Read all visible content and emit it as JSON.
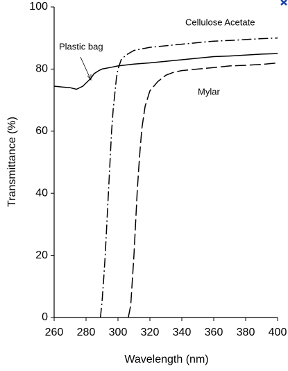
{
  "chart_data": {
    "type": "line",
    "xlabel": "Wavelength (nm)",
    "ylabel": "Transmittance (%)",
    "xlim": [
      260,
      400
    ],
    "ylim": [
      0,
      100
    ],
    "xticks": [
      260,
      280,
      300,
      320,
      340,
      360,
      380,
      400
    ],
    "yticks": [
      0,
      20,
      40,
      60,
      80,
      100
    ],
    "series": [
      {
        "name": "Plastic bag",
        "color": "#000000",
        "dash": "solid",
        "x": [
          260,
          265,
          270,
          274,
          278,
          280,
          283,
          285,
          288,
          290,
          295,
          300,
          310,
          320,
          330,
          340,
          350,
          360,
          370,
          380,
          390,
          400
        ],
        "values": [
          74.5,
          74.2,
          74,
          73.5,
          74.5,
          75.5,
          77,
          78.5,
          79.5,
          80,
          80.5,
          81,
          81.6,
          82,
          82.5,
          83,
          83.5,
          84,
          84.2,
          84.5,
          84.8,
          85
        ]
      },
      {
        "name": "Cellulose Acetate",
        "color": "#000000",
        "dash": "dashdot",
        "x": [
          289,
          290,
          291,
          292,
          293,
          294,
          295,
          296,
          297,
          298,
          299,
          300,
          302,
          305,
          310,
          320,
          330,
          340,
          350,
          360,
          370,
          380,
          390,
          400
        ],
        "values": [
          0,
          5,
          12,
          20,
          30,
          40,
          50,
          60,
          67,
          72,
          77,
          80,
          83,
          84.5,
          86,
          87,
          87.5,
          88,
          88.5,
          89,
          89.2,
          89.5,
          89.8,
          90
        ]
      },
      {
        "name": "Mylar",
        "color": "#000000",
        "dash": "longdash",
        "x": [
          306.5,
          308,
          309,
          310,
          311,
          312,
          313,
          314,
          315,
          317,
          320,
          325,
          330,
          335,
          340,
          350,
          360,
          370,
          380,
          390,
          400
        ],
        "values": [
          0,
          4,
          12,
          20,
          30,
          40,
          48,
          55,
          61,
          68,
          73,
          76,
          78,
          79,
          79.5,
          80,
          80.5,
          81,
          81.2,
          81.5,
          82
        ]
      }
    ]
  }
}
